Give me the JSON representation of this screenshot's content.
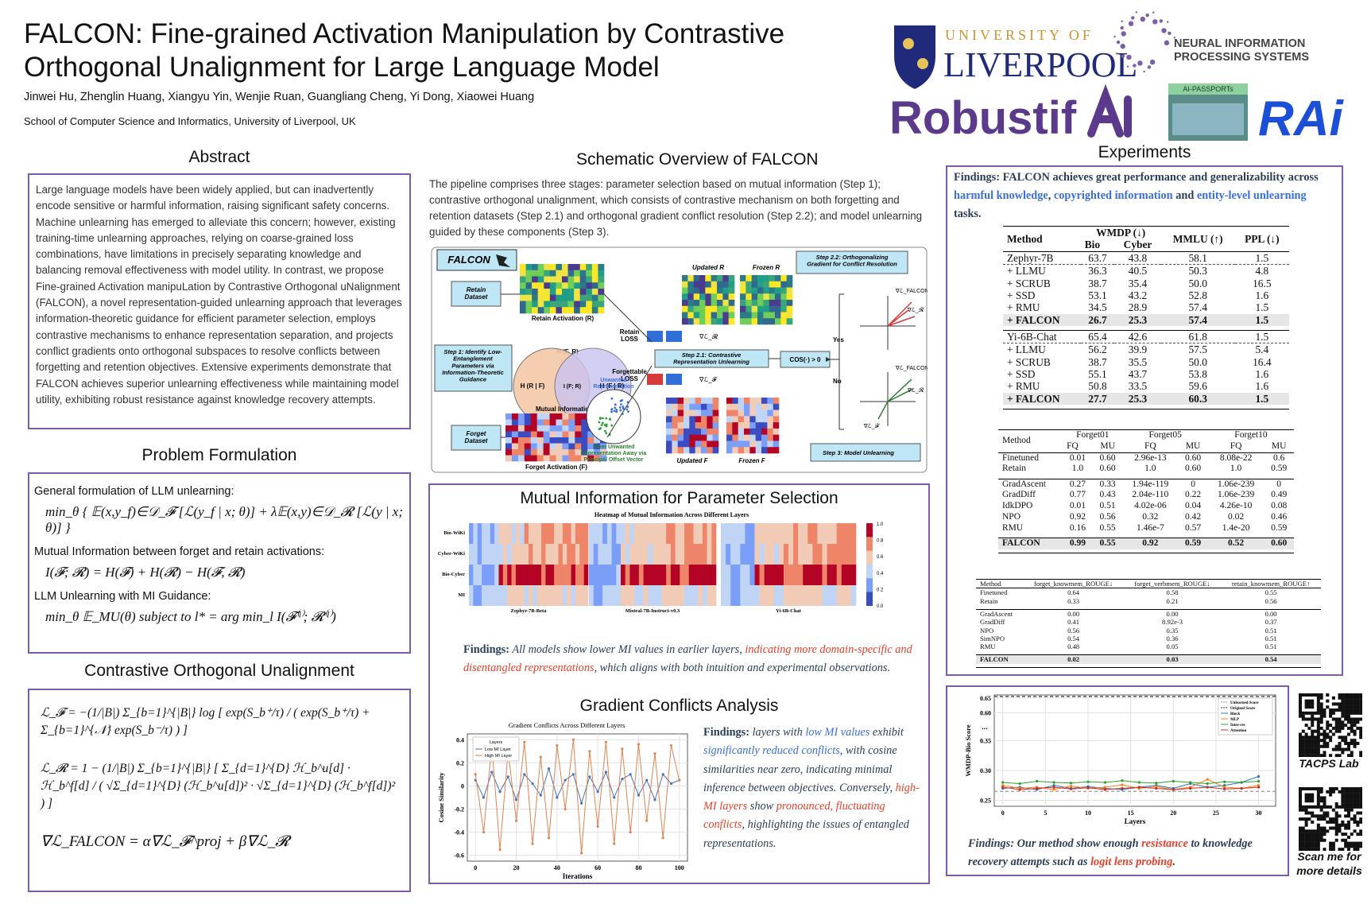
{
  "header": {
    "title_lines": [
      "FALCON: Fine-grained Activation Manipulation by Contrastive",
      "Orthogonal Unalignment for Large Language Model"
    ],
    "authors": "Jinwei Hu, Zhenglin Huang, Xiangyu Yin, Wenjie Ruan, Guangliang Cheng, Yi Dong, Xiaowei Huang",
    "affiliation": "School of Computer Science and Informatics, University of Liverpool, UK"
  },
  "logos": {
    "university_of": "UNIVERSITY OF",
    "liverpool": "LIVERPOOL",
    "neurips_lines": [
      "NEURAL INFORMATION",
      "PROCESSING SYSTEMS"
    ],
    "robustifai": "Robustif",
    "ai_passports": "AI-PASSPORTs",
    "rai": "RAi"
  },
  "abstract": {
    "heading": "Abstract",
    "text": "Large language models have been widely applied, but can inadvertently encode sensitive or harmful information, raising significant safety concerns. Machine unlearning has emerged to alleviate this concern; however, existing training-time unlearning approaches, relying on coarse-grained loss combinations, have limitations in precisely separating knowledge and balancing removal effectiveness with model utility. In contrast, we propose Fine-grained Activation manipuLation by Contrastive Orthogonal uNalignment (FALCON), a novel representation-guided unlearning approach that leverages information-theoretic guidance for efficient parameter selection, employs contrastive mechanisms to enhance representation separation, and projects conflict gradients onto orthogonal subspaces to resolve conflicts between forgetting and retention objectives. Extensive experiments demonstrate that FALCON achieves superior unlearning effectiveness while maintaining model utility, exhibiting robust resistance against knowledge recovery attempts."
  },
  "problem": {
    "heading": "Problem Formulation",
    "items": [
      {
        "label": "General formulation of LLM unlearning:",
        "formula": "min_θ { 𝔼(x,y_f)∈𝒟_𝓕 [ℒ(y_f | x; θ)] + λ𝔼(x,y)∈𝒟_𝓡 [ℒ(y | x; θ)] }"
      },
      {
        "label": "Mutual Information between forget and retain activations:",
        "formula": "I(𝓕; 𝓡) = H(𝓕) + H(𝓡) − H(𝓕, 𝓡)"
      },
      {
        "label": "LLM Unlearning with MI Guidance:",
        "formula": "min_θ 𝔼_MU(θ)   subject to   l* = arg min_l I(𝓕⁽ˡ⁾; 𝓡⁽ˡ⁾)"
      }
    ]
  },
  "contrastive": {
    "heading": "Contrastive Orthogonal Unalignment",
    "formulas": [
      "ℒ_𝓕 = −(1/|B|) Σ_{b=1}^{|B|} log [ exp(S_b⁺/τ) / ( exp(S_b⁺/τ) + Σ_{b=1}^{𝒩} exp(S_b⁻/τ) ) ]",
      "ℒ_𝓡 = 1 − (1/|B|) Σ_{b=1}^{|B|} [ Σ_{d=1}^{D} ℋ_b^u[d] · ℋ_b^f[d] / ( √Σ_{d=1}^{D} (ℋ_b^u[d])² · √Σ_{d=1}^{D} (ℋ_b^f[d])² ) ]",
      "∇ℒ_FALCON = α∇ℒ_𝓕^proj + β∇ℒ_𝓡"
    ]
  },
  "schematic": {
    "heading": "Schematic Overview of FALCON",
    "text": "The pipeline comprises three stages: parameter selection based on mutual information (Step 1); contrastive orthogonal unalignment, which consists of contrastive mechanism on both forgetting and retention datasets (Step 2.1) and orthogonal gradient conflict resolution (Step 2.2); and model unlearning guided by these components (Step 3).",
    "figure": {
      "falcon": "FALCON",
      "retain_dataset": [
        "Retain",
        "Dataset"
      ],
      "forget_dataset": [
        "Forget",
        "Dataset"
      ],
      "retain_activation": "Retain Activation (R)",
      "forget_activation": "Forget Activation (F)",
      "joint_entropy": "H (F, R)",
      "cond_r": "H (R | F)",
      "mi": "I (F; R)",
      "cond_f": "H (F | R)",
      "mutual_information": "Mutual Information",
      "step1": [
        "Step 1: Identify Low-",
        "Entanglement",
        "Parameters via",
        "Information-Theoretic",
        "Guidance"
      ],
      "updated_r": "Updated R",
      "frozen_r": "Frozen R",
      "retain_loss": [
        "Retain",
        "LOSS"
      ],
      "forgettable_loss": [
        "Forgettable",
        "LOSS"
      ],
      "step21": [
        "Step 2.1: Contrastive",
        "Representation Unlearning"
      ],
      "unwanted": [
        "Unwanted",
        "Representation"
      ],
      "steer": [
        "Steer Unwanted",
        "Representation Away via",
        "Principal Offset Vector"
      ],
      "updated_f": "Updated F",
      "frozen_f": "Frozen F",
      "step22": [
        "Step 2.2: Orthogonalizing",
        "Gradient for Conflict Resolution"
      ],
      "cos": "COS(·) > 0",
      "yes": "Yes",
      "no": "No",
      "step3": "Step 3: Model Unlearning",
      "grad_falcon": "∇ℒ_FALCON",
      "grad_r": "∇ℒ_𝓡",
      "grad_f": "∇ℒ_𝓕"
    }
  },
  "mutual_info": {
    "heading": "Mutual Information for Parameter Selection",
    "figure_title": "Heatmap of Mutual Information Across Different Layers",
    "rows": [
      "Bio-WiKi",
      "Cyber-WiKi",
      "Bio-Cyber",
      "MI"
    ],
    "models": [
      "Zephyr-7B-Beta",
      "Mistral-7B-Instruct-v0.3",
      "Yi-6B-Chat"
    ],
    "colorbar_ticks": [
      "1.0",
      "0.8",
      "0.6",
      "0.4",
      "0.2",
      "0.0"
    ],
    "findings": [
      {
        "text": "Findings:",
        "bold": true,
        "italic": false
      },
      {
        "text": " All models show lower MI values in earlier layers, "
      },
      {
        "text": "indicating more domain-specific and disentangled representations",
        "color": "#e8402a"
      },
      {
        "text": ", which aligns with both intuition and experimental observations."
      }
    ]
  },
  "gradient": {
    "heading": "Gradient Conflicts Analysis",
    "chart": {
      "type": "line",
      "title": "Gradient Conflicts Across Different Layers",
      "x_label": "Iterations",
      "y_label": "Cosine Similarity",
      "legend_title": "Layers",
      "x": [
        0,
        4,
        8,
        12,
        16,
        20,
        24,
        28,
        32,
        36,
        40,
        44,
        48,
        52,
        56,
        60,
        64,
        68,
        72,
        76,
        80,
        84,
        88,
        92,
        96,
        100
      ],
      "series": [
        {
          "name": "Low MI Layer",
          "color": "#4c72b0",
          "values": [
            0.05,
            -0.1,
            0.12,
            -0.05,
            0.08,
            -0.12,
            0.1,
            0.02,
            -0.08,
            0.15,
            -0.1,
            0.05,
            0.1,
            -0.15,
            0.08,
            -0.05,
            0.12,
            -0.1,
            0.06,
            0.1,
            -0.08,
            0.05,
            -0.12,
            0.1,
            0.02,
            0.05
          ]
        },
        {
          "name": "High MI Layer",
          "color": "#dd8452",
          "values": [
            0.1,
            -0.4,
            0.35,
            -0.55,
            0.3,
            -0.3,
            0.38,
            -0.5,
            0.25,
            -0.45,
            0.35,
            -0.2,
            0.4,
            -0.58,
            0.3,
            -0.35,
            0.38,
            -0.5,
            0.32,
            -0.4,
            0.36,
            -0.3,
            0.28,
            -0.45,
            0.35,
            0.05
          ]
        }
      ],
      "xlim": [
        -4,
        104
      ],
      "ylim": [
        -0.65,
        0.45
      ],
      "xticks": [
        0,
        20,
        40,
        60,
        80,
        100
      ],
      "yticks": [
        -0.6,
        -0.4,
        -0.2,
        0,
        0.2,
        0.4
      ],
      "grid": true
    },
    "findings": [
      {
        "text": "Findings:",
        "bold": true,
        "italic": false
      },
      {
        "text": " layers with "
      },
      {
        "text": "low MI values",
        "color": "#3a6fd8"
      },
      {
        "text": " exhibit "
      },
      {
        "text": "significantly reduced conflicts",
        "color": "#3a6fd8"
      },
      {
        "text": ", with cosine similarities near zero, indicating minimal inference between objectives. Conversely, "
      },
      {
        "text": "high-MI layers",
        "color": "#e8402a"
      },
      {
        "text": " show "
      },
      {
        "text": "pronounced, fluctuating conflicts",
        "color": "#e8402a"
      },
      {
        "text": ", highlighting the issues of entangled representations."
      }
    ]
  },
  "experiments": {
    "heading": "Experiments",
    "findings": [
      {
        "text": "Findings:",
        "bold": true
      },
      {
        "text": " FALCON achieves great performance and generalizability across "
      },
      {
        "text": "harmful knowledge",
        "color": "#3a6fd8"
      },
      {
        "text": ", "
      },
      {
        "text": "copyrighted information",
        "color": "#3a6fd8"
      },
      {
        "text": " and "
      },
      {
        "text": "entity-level unlearning",
        "color": "#3a6fd8"
      },
      {
        "text": " tasks."
      }
    ],
    "table_wmdp": {
      "head": [
        [
          "Method",
          "WMDP (↓)",
          "MMLU (↑)",
          "PPL (↓)"
        ],
        [
          "Bio",
          "Cyber"
        ]
      ],
      "groups": [
        [
          [
            "Zephyr-7B",
            "63.7",
            "43.8",
            "58.1",
            "1.5"
          ],
          [
            "+ LLMU",
            "36.3",
            "40.5",
            "50.3",
            "4.8"
          ],
          [
            "+ SCRUB",
            "38.7",
            "35.4",
            "50.0",
            "16.5"
          ],
          [
            "+ SSD",
            "53.1",
            "43.2",
            "52.8",
            "1.6"
          ],
          [
            "+ RMU",
            "34.5",
            "28.9",
            "57.4",
            "1.5"
          ],
          [
            "+ FALCON",
            "26.7",
            "25.3",
            "57.4",
            "1.5"
          ]
        ],
        [
          [
            "Yi-6B-Chat",
            "65.4",
            "42.6",
            "61.8",
            "1.5"
          ],
          [
            "+ LLMU",
            "56.2",
            "39.9",
            "57.5",
            "5.4"
          ],
          [
            "+ SCRUB",
            "38.7",
            "35.5",
            "50.0",
            "16.4"
          ],
          [
            "+ SSD",
            "55.1",
            "43.7",
            "53.8",
            "1.6"
          ],
          [
            "+ RMU",
            "50.8",
            "33.5",
            "59.6",
            "1.6"
          ],
          [
            "+ FALCON",
            "27.7",
            "25.3",
            "60.3",
            "1.5"
          ]
        ]
      ]
    },
    "table_tofu": {
      "head": [
        [
          "Method",
          "Forget01",
          "Forget05",
          "Forget10"
        ],
        [
          "FQ",
          "MU",
          "FQ",
          "MU",
          "FQ",
          "MU"
        ]
      ],
      "groups": [
        [
          [
            "Finetuned",
            "0.01",
            "0.60",
            "2.96e-13",
            "0.60",
            "8.08e-22",
            "0.6"
          ],
          [
            "Retain",
            "1.0",
            "0.60",
            "1.0",
            "0.60",
            "1.0",
            "0.59"
          ]
        ],
        [
          [
            "GradAscent",
            "0.27",
            "0.33",
            "1.94e-119",
            "0",
            "1.06e-239",
            "0"
          ],
          [
            "GradDiff",
            "0.77",
            "0.43",
            "2.04e-110",
            "0.22",
            "1.06e-239",
            "0.49"
          ],
          [
            "IdkDPO",
            "0.01",
            "0.51",
            "4.02e-06",
            "0.04",
            "4.26e-10",
            "0.08"
          ],
          [
            "NPO",
            "0.92",
            "0.56",
            "0.32",
            "0.42",
            "0.02",
            "0.46"
          ],
          [
            "RMU",
            "0.16",
            "0.55",
            "1.46e-7",
            "0.57",
            "1.4e-20",
            "0.59"
          ]
        ],
        [
          [
            "FALCON",
            "0.99",
            "0.55",
            "0.92",
            "0.59",
            "0.52",
            "0.60"
          ]
        ]
      ]
    },
    "table_muse": {
      "head": [
        [
          "Method",
          "forget_knowmem_ROUGE↓",
          "forget_verbmem_ROUGE↓",
          "retain_knowmem_ROUGE↑"
        ]
      ],
      "groups": [
        [
          [
            "Finetuned",
            "0.64",
            "0.58",
            "0.55"
          ],
          [
            "Retain",
            "0.33",
            "0.21",
            "0.56"
          ]
        ],
        [
          [
            "GradAscent",
            "0.00",
            "0.00",
            "0.00"
          ],
          [
            "GradDiff",
            "0.41",
            "8.92e-3",
            "0.37"
          ],
          [
            "NPO",
            "0.56",
            "0.35",
            "0.51"
          ],
          [
            "SimNPO",
            "0.54",
            "0.36",
            "0.51"
          ],
          [
            "RMU",
            "0.48",
            "0.05",
            "0.51"
          ]
        ],
        [
          [
            "FALCON",
            "0.02",
            "0.03",
            "0.54"
          ]
        ]
      ]
    }
  },
  "robustness": {
    "chart": {
      "type": "line",
      "x_label": "Layers",
      "y_label": "WMDP-Bio Score",
      "axis_break_label": "...",
      "x": [
        0,
        2,
        4,
        6,
        8,
        10,
        12,
        14,
        16,
        18,
        20,
        22,
        24,
        26,
        28,
        30
      ],
      "reference_lines": [
        {
          "name": "Unlearned Score",
          "color": "#9a9a9a",
          "value": 0.265
        },
        {
          "name": "Original Score",
          "color": "#333333",
          "value": 0.655
        }
      ],
      "series": [
        {
          "name": "Block",
          "color": "#1f77b4",
          "values": [
            0.27,
            0.272,
            0.268,
            0.275,
            0.27,
            0.273,
            0.27,
            0.268,
            0.272,
            0.275,
            0.27,
            0.278,
            0.272,
            0.275,
            0.28,
            0.29
          ]
        },
        {
          "name": "MLP",
          "color": "#ff7f0e",
          "values": [
            0.275,
            0.27,
            0.272,
            0.268,
            0.274,
            0.27,
            0.272,
            0.276,
            0.27,
            0.273,
            0.268,
            0.272,
            0.285,
            0.272,
            0.27,
            0.275
          ]
        },
        {
          "name": "Inter-res",
          "color": "#2ca02c",
          "values": [
            0.28,
            0.278,
            0.282,
            0.28,
            0.279,
            0.281,
            0.28,
            0.283,
            0.28,
            0.279,
            0.282,
            0.28,
            0.278,
            0.281,
            0.28,
            0.282
          ]
        },
        {
          "name": "Attention",
          "color": "#d62728",
          "values": [
            0.272,
            0.268,
            0.27,
            0.272,
            0.269,
            0.271,
            0.268,
            0.27,
            0.272,
            0.27,
            0.268,
            0.27,
            0.272,
            0.269,
            0.27,
            0.272
          ]
        }
      ],
      "xlim": [
        -1,
        32
      ],
      "ylim": [
        0.24,
        0.66
      ],
      "axis_break": [
        0.36,
        0.58
      ],
      "xticks": [
        0,
        5,
        10,
        15,
        20,
        25,
        30
      ],
      "yticks": [
        0.25,
        {
          "value": 0.3,
          "label": "0.30"
        },
        0.35,
        {
          "value": 0.6,
          "label": "0.60"
        },
        0.65
      ],
      "grid": true
    },
    "findings": [
      {
        "text": "Findings:"
      },
      {
        "text": " Our method show enough "
      },
      {
        "text": "resistance",
        "color": "#e8402a"
      },
      {
        "text": " to knowledge recovery attempts such as "
      },
      {
        "text": "logit lens probing",
        "color": "#e8402a"
      },
      {
        "text": "."
      }
    ]
  },
  "qr": {
    "lab": "TACPS Lab",
    "scan_lines": [
      "Scan me for",
      "more details"
    ]
  }
}
